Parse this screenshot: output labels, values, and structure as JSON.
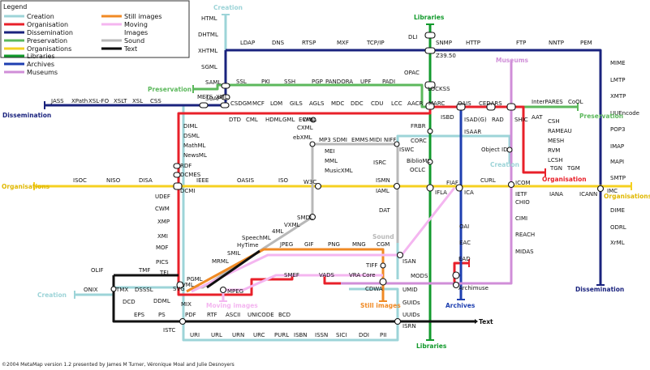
{
  "legend": {
    "title": "Legend",
    "items": [
      {
        "label": "Creation",
        "color": "#9dd4d8"
      },
      {
        "label": "Organisation",
        "color": "#e8202a"
      },
      {
        "label": "Dissemination",
        "color": "#1a237e"
      },
      {
        "label": "Preservation",
        "color": "#5cb85c"
      },
      {
        "label": "Organisations",
        "color": "#f5d020"
      },
      {
        "label": "Libraries",
        "color": "#129a2c"
      },
      {
        "label": "Archives",
        "color": "#1e3fb0"
      },
      {
        "label": "Museums",
        "color": "#d08ed8"
      },
      {
        "label": "Still images",
        "color": "#f08a24"
      },
      {
        "label": "Moving",
        "color": "#f4b6f0"
      },
      {
        "label": "Images",
        "color": ""
      },
      {
        "label": "Sound",
        "color": "#b8b8b8"
      },
      {
        "label": "Text",
        "color": "#000000"
      }
    ]
  },
  "terminals": {
    "creation_top": "Creation",
    "creation_right": "Creation",
    "creation_left": "Creation",
    "preservation_left": "Preservation",
    "preservation_right": "Preservation",
    "dissemination_left": "Dissemination",
    "dissemination_right": "Dissemination",
    "organisations_left": "Organisations",
    "organisations_right": "Organisations",
    "libraries_top": "Libraries",
    "libraries_bottom": "Libraries",
    "museums": "Museums",
    "archives": "Archives",
    "organisation": "Organisation",
    "sound": "Sound",
    "still_images": "Still images",
    "moving_images": "Moving images",
    "text": "Text"
  },
  "stations": [
    "HTML",
    "DHTML",
    "XHTML",
    "SGML",
    "SAML",
    "SOAP",
    "LDAP",
    "DNS",
    "RTSP",
    "MXF",
    "TCP/IP",
    "DLI",
    "SNMP",
    "HTTP",
    "FTP",
    "NNTP",
    "PEM",
    "Z39.50",
    "MIME",
    "LMTP",
    "XMTP",
    "UUEncode",
    "POP3",
    "IMAP",
    "MAPI",
    "SMTP",
    "IMC",
    "DIME",
    "ODRL",
    "XrML",
    "SSL",
    "PKI",
    "SSH",
    "PGP",
    "PANDORA",
    "UPF",
    "PADI",
    "OPAC",
    "LOCKSS",
    "JASS",
    "XPath",
    "XSL-FO",
    "XSLT",
    "XSL",
    "CSS",
    "METS",
    "XML",
    "CSDGM",
    "DTD",
    "CML",
    "HDML",
    "GML",
    "ECML",
    "WML",
    "MCF",
    "LOM",
    "GILS",
    "AGLS",
    "MDC",
    "DDC",
    "CDU",
    "LCC",
    "AACR",
    "MARC",
    "ISBD",
    "OAIS",
    "CEDARS",
    "ISAD(G)",
    "RAD",
    "ISAAR",
    "InterPARES",
    "CoOL",
    "SHIC",
    "AAT",
    "CSH",
    "RAMEAU",
    "MESH",
    "RVM",
    "LCSH",
    "TGN",
    "TGM",
    "Object ID",
    "DIML",
    "DSML",
    "MathML",
    "NewsML",
    "RDF",
    "DCMES",
    "DCMI",
    "CXML",
    "ebXML",
    "MP3",
    "SDMI",
    "EMMS",
    "MIDI",
    "NIFF",
    "MEI",
    "MML",
    "MusicXML",
    "ISWC",
    "FRBR",
    "CORC",
    "BiblioML",
    "ISRC",
    "OCLC",
    "ISOC",
    "NISO",
    "DISA",
    "IEEE",
    "OASIS",
    "ISO",
    "W3C",
    "ISMN",
    "IAML",
    "IFLA",
    "FIAF",
    "ICA",
    "CURL",
    "ICOM",
    "IETF",
    "IANA",
    "ICANN",
    "UDEF",
    "CWM",
    "XMP",
    "XMI",
    "MOF",
    "PICS",
    "TEI",
    "PGML",
    "VML",
    "SVG",
    "DDML",
    "MIX",
    "MPEG",
    "SMDL",
    "VXML",
    "4ML",
    "SpeechML",
    "HyTime",
    "SMIL",
    "MRML",
    "JPEG",
    "GIF",
    "PNG",
    "MNG",
    "CGM",
    "DAT",
    "ISAN",
    "CHIO",
    "CIMI",
    "REACH",
    "MIDAS",
    "OAI",
    "EAC",
    "EAD",
    "TIFF",
    "OLIF",
    "TMF",
    "ONIX",
    "TMX",
    "DSSSL",
    "DCD",
    "SMEF",
    "VADS",
    "VRA Core",
    "CDWA",
    "MODS",
    "UMID",
    "GUIDs",
    "UUIDs",
    "Archimuse",
    "EPS",
    "PS",
    "PDF",
    "RTF",
    "ASCII",
    "UNICODE",
    "BCD",
    "ISTC",
    "ISRN",
    "URI",
    "URL",
    "URN",
    "URC",
    "PURL",
    "ISBN",
    "ISSN",
    "SICI",
    "DOI",
    "PII"
  ],
  "footer": "©2004 MetaMap version 1.2 presented by James M Turner, Véronique Moal and Julie Desnoyers"
}
